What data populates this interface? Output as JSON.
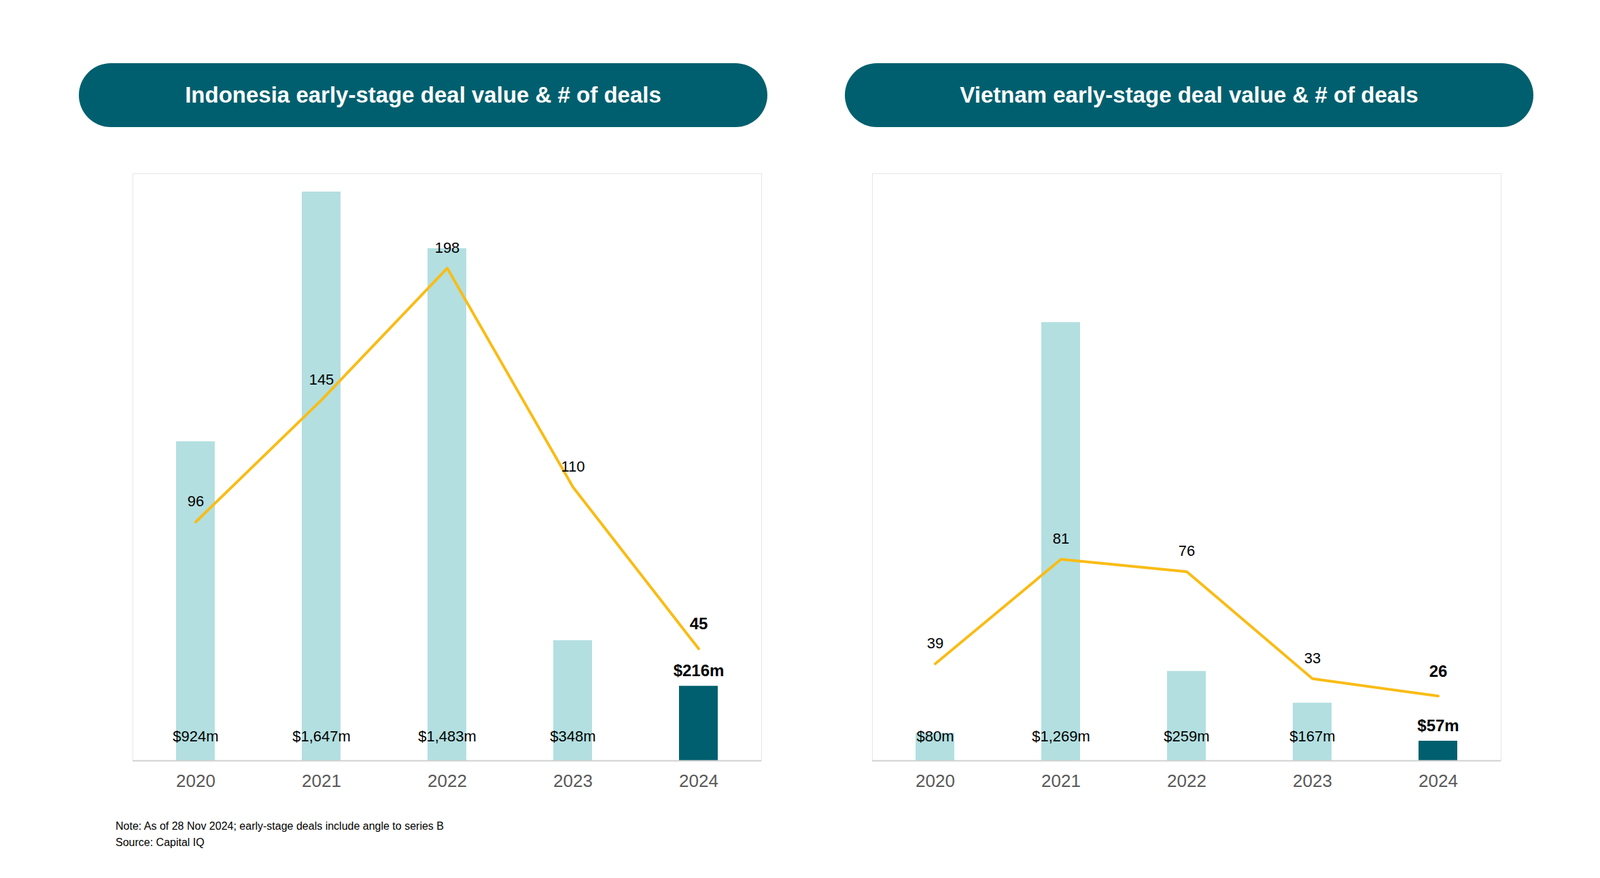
{
  "chart_data": [
    {
      "type": "bar",
      "title": "Indonesia early-stage deal value & # of deals",
      "categories": [
        "2020",
        "2021",
        "2022",
        "2023",
        "2024"
      ],
      "series": [
        {
          "type": "bar",
          "color": "#b3dfe0",
          "colors": [
            "#b3dfe0",
            "#b3dfe0",
            "#b3dfe0",
            "#b3dfe0",
            "#005f6e"
          ],
          "values": [
            924,
            1647,
            1483,
            348,
            216
          ],
          "value_labels": [
            "$924m",
            "$1,647m",
            "$1,483m",
            "$348m",
            "$216m"
          ]
        },
        {
          "type": "line",
          "axis": "y2",
          "color": "#f9bc15",
          "values": [
            96,
            145,
            198,
            110,
            45
          ]
        }
      ],
      "ylim": [
        0,
        1700
      ],
      "y2lim": [
        0,
        236
      ],
      "grid": false,
      "data_labels": true,
      "tick_labels": "x"
    },
    {
      "type": "bar",
      "title": "Vietnam early-stage deal value & # of deals",
      "categories": [
        "2020",
        "2021",
        "2022",
        "2023",
        "2024"
      ],
      "series": [
        {
          "type": "bar",
          "color": "#b3dfe0",
          "colors": [
            "#b3dfe0",
            "#b3dfe0",
            "#b3dfe0",
            "#b3dfe0",
            "#005f6e"
          ],
          "values": [
            80,
            1269,
            259,
            167,
            57
          ],
          "value_labels": [
            "$80m",
            "$1,269m",
            "$259m",
            "$167m",
            "$57m"
          ]
        },
        {
          "type": "line",
          "axis": "y2",
          "color": "#f9bc15",
          "values": [
            39,
            81,
            76,
            33,
            26
          ]
        }
      ],
      "ylim": [
        0,
        1700
      ],
      "y2lim": [
        0,
        236
      ],
      "grid": false,
      "data_labels": true,
      "tick_labels": "x"
    }
  ],
  "notes": [
    "Note: As of 28 Nov 2024; early-stage deals include angle to series B",
    "Source: Capital IQ"
  ]
}
